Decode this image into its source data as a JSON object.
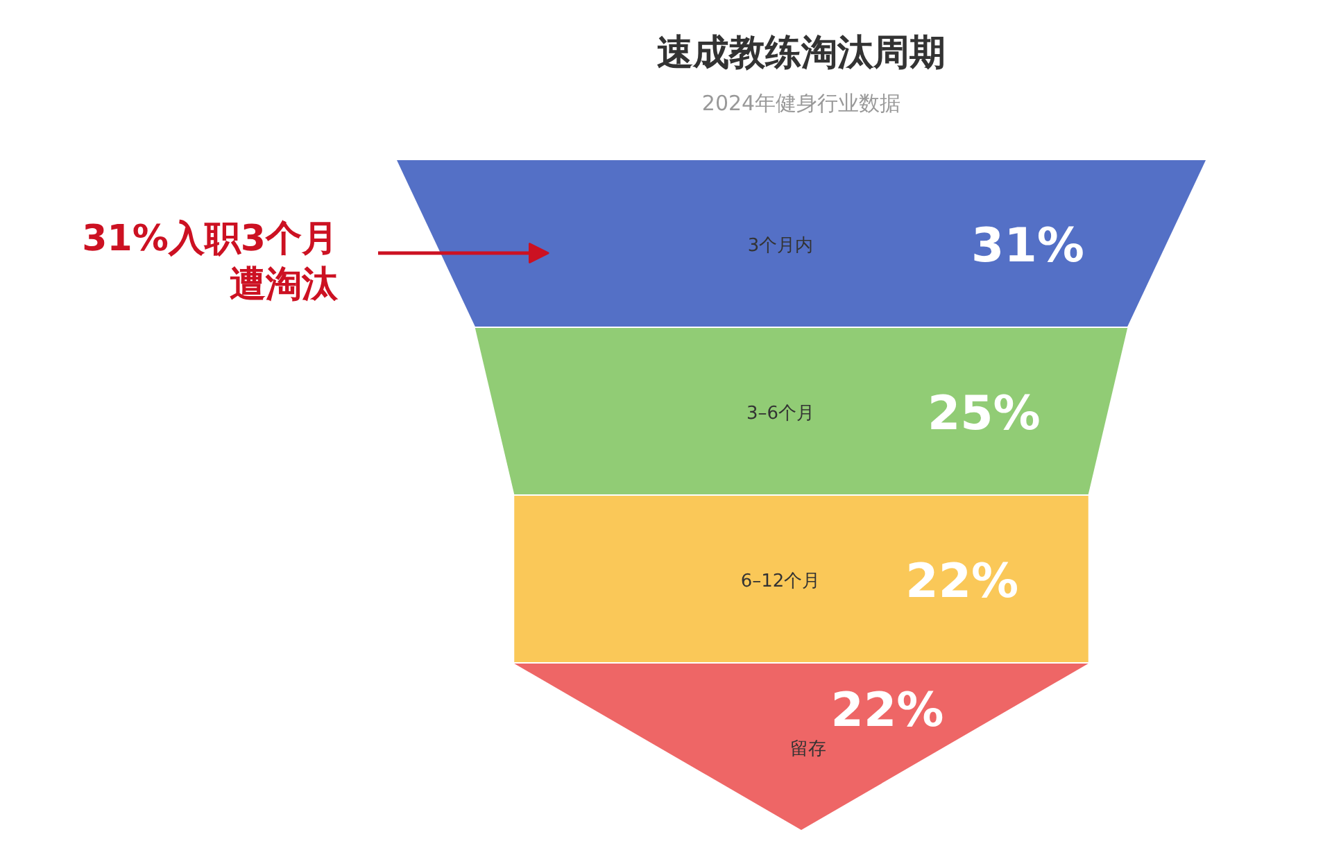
{
  "chart_data": {
    "type": "other",
    "title": "速成教练淘汰周期",
    "subtitle": "2024年健身行业数据",
    "categories": [
      "3个月内",
      "3–6个月",
      "6–12个月",
      "留存"
    ],
    "values": [
      31,
      25,
      22,
      22
    ],
    "value_labels": [
      "31%",
      "25%",
      "22%",
      "22%"
    ],
    "colors": [
      "#5470c6",
      "#91cc75",
      "#fac858",
      "#ee6666"
    ],
    "annotations": [
      "31%入职3个月",
      "遭淘汰"
    ]
  }
}
